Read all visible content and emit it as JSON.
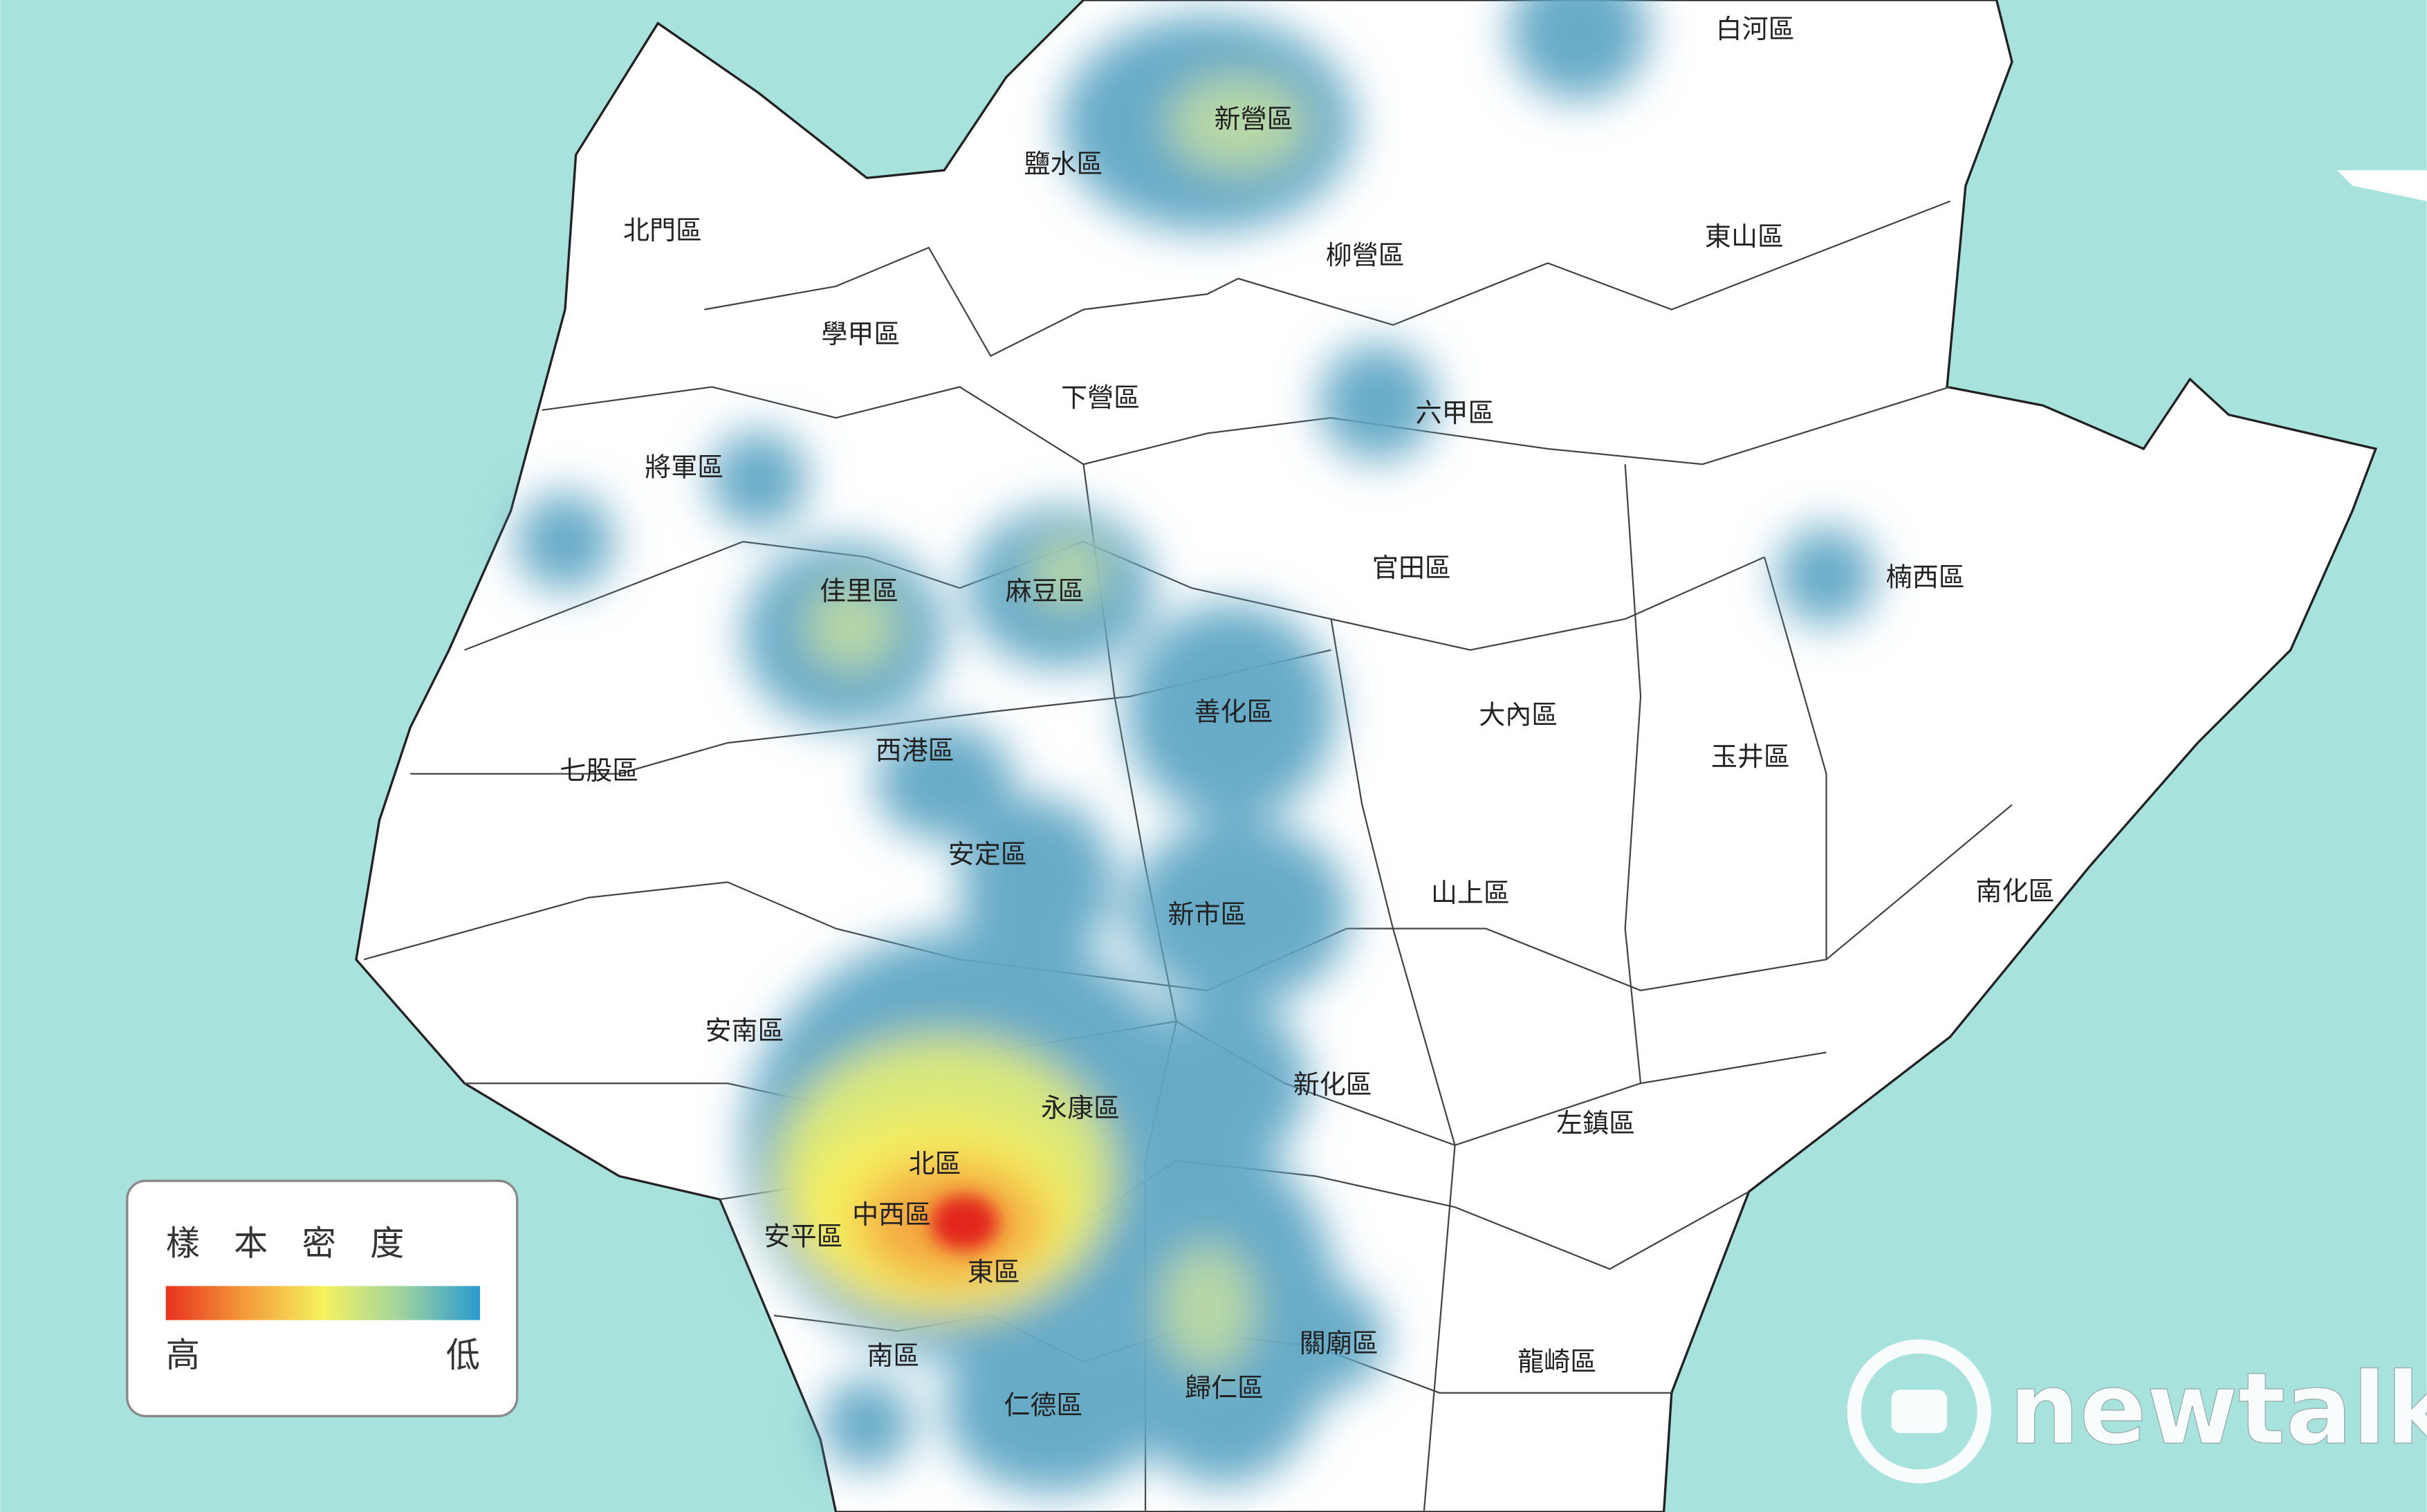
{
  "districts": [
    {
      "label": "白河區"
    },
    {
      "label": "新營區"
    },
    {
      "label": "鹽水區"
    },
    {
      "label": "北門區"
    },
    {
      "label": "東山區"
    },
    {
      "label": "柳營區"
    },
    {
      "label": "學甲區"
    },
    {
      "label": "下營區"
    },
    {
      "label": "六甲區"
    },
    {
      "label": "將軍區"
    },
    {
      "label": "官田區"
    },
    {
      "label": "楠西區"
    },
    {
      "label": "佳里區"
    },
    {
      "label": "麻豆區"
    },
    {
      "label": "善化區"
    },
    {
      "label": "大內區"
    },
    {
      "label": "七股區"
    },
    {
      "label": "西港區"
    },
    {
      "label": "玉井區"
    },
    {
      "label": "安定區"
    },
    {
      "label": "山上區"
    },
    {
      "label": "南化區"
    },
    {
      "label": "新市區"
    },
    {
      "label": "安南區"
    },
    {
      "label": "新化區"
    },
    {
      "label": "永康區"
    },
    {
      "label": "左鎮區"
    },
    {
      "label": "北區"
    },
    {
      "label": "中西區"
    },
    {
      "label": "安平區"
    },
    {
      "label": "東區"
    },
    {
      "label": "關廟區"
    },
    {
      "label": "南區"
    },
    {
      "label": "龍崎區"
    },
    {
      "label": "仁德區"
    },
    {
      "label": "歸仁區"
    }
  ],
  "legend": {
    "title": "樣本密度",
    "high": "高",
    "low": "低"
  },
  "watermark": "newtalk"
}
